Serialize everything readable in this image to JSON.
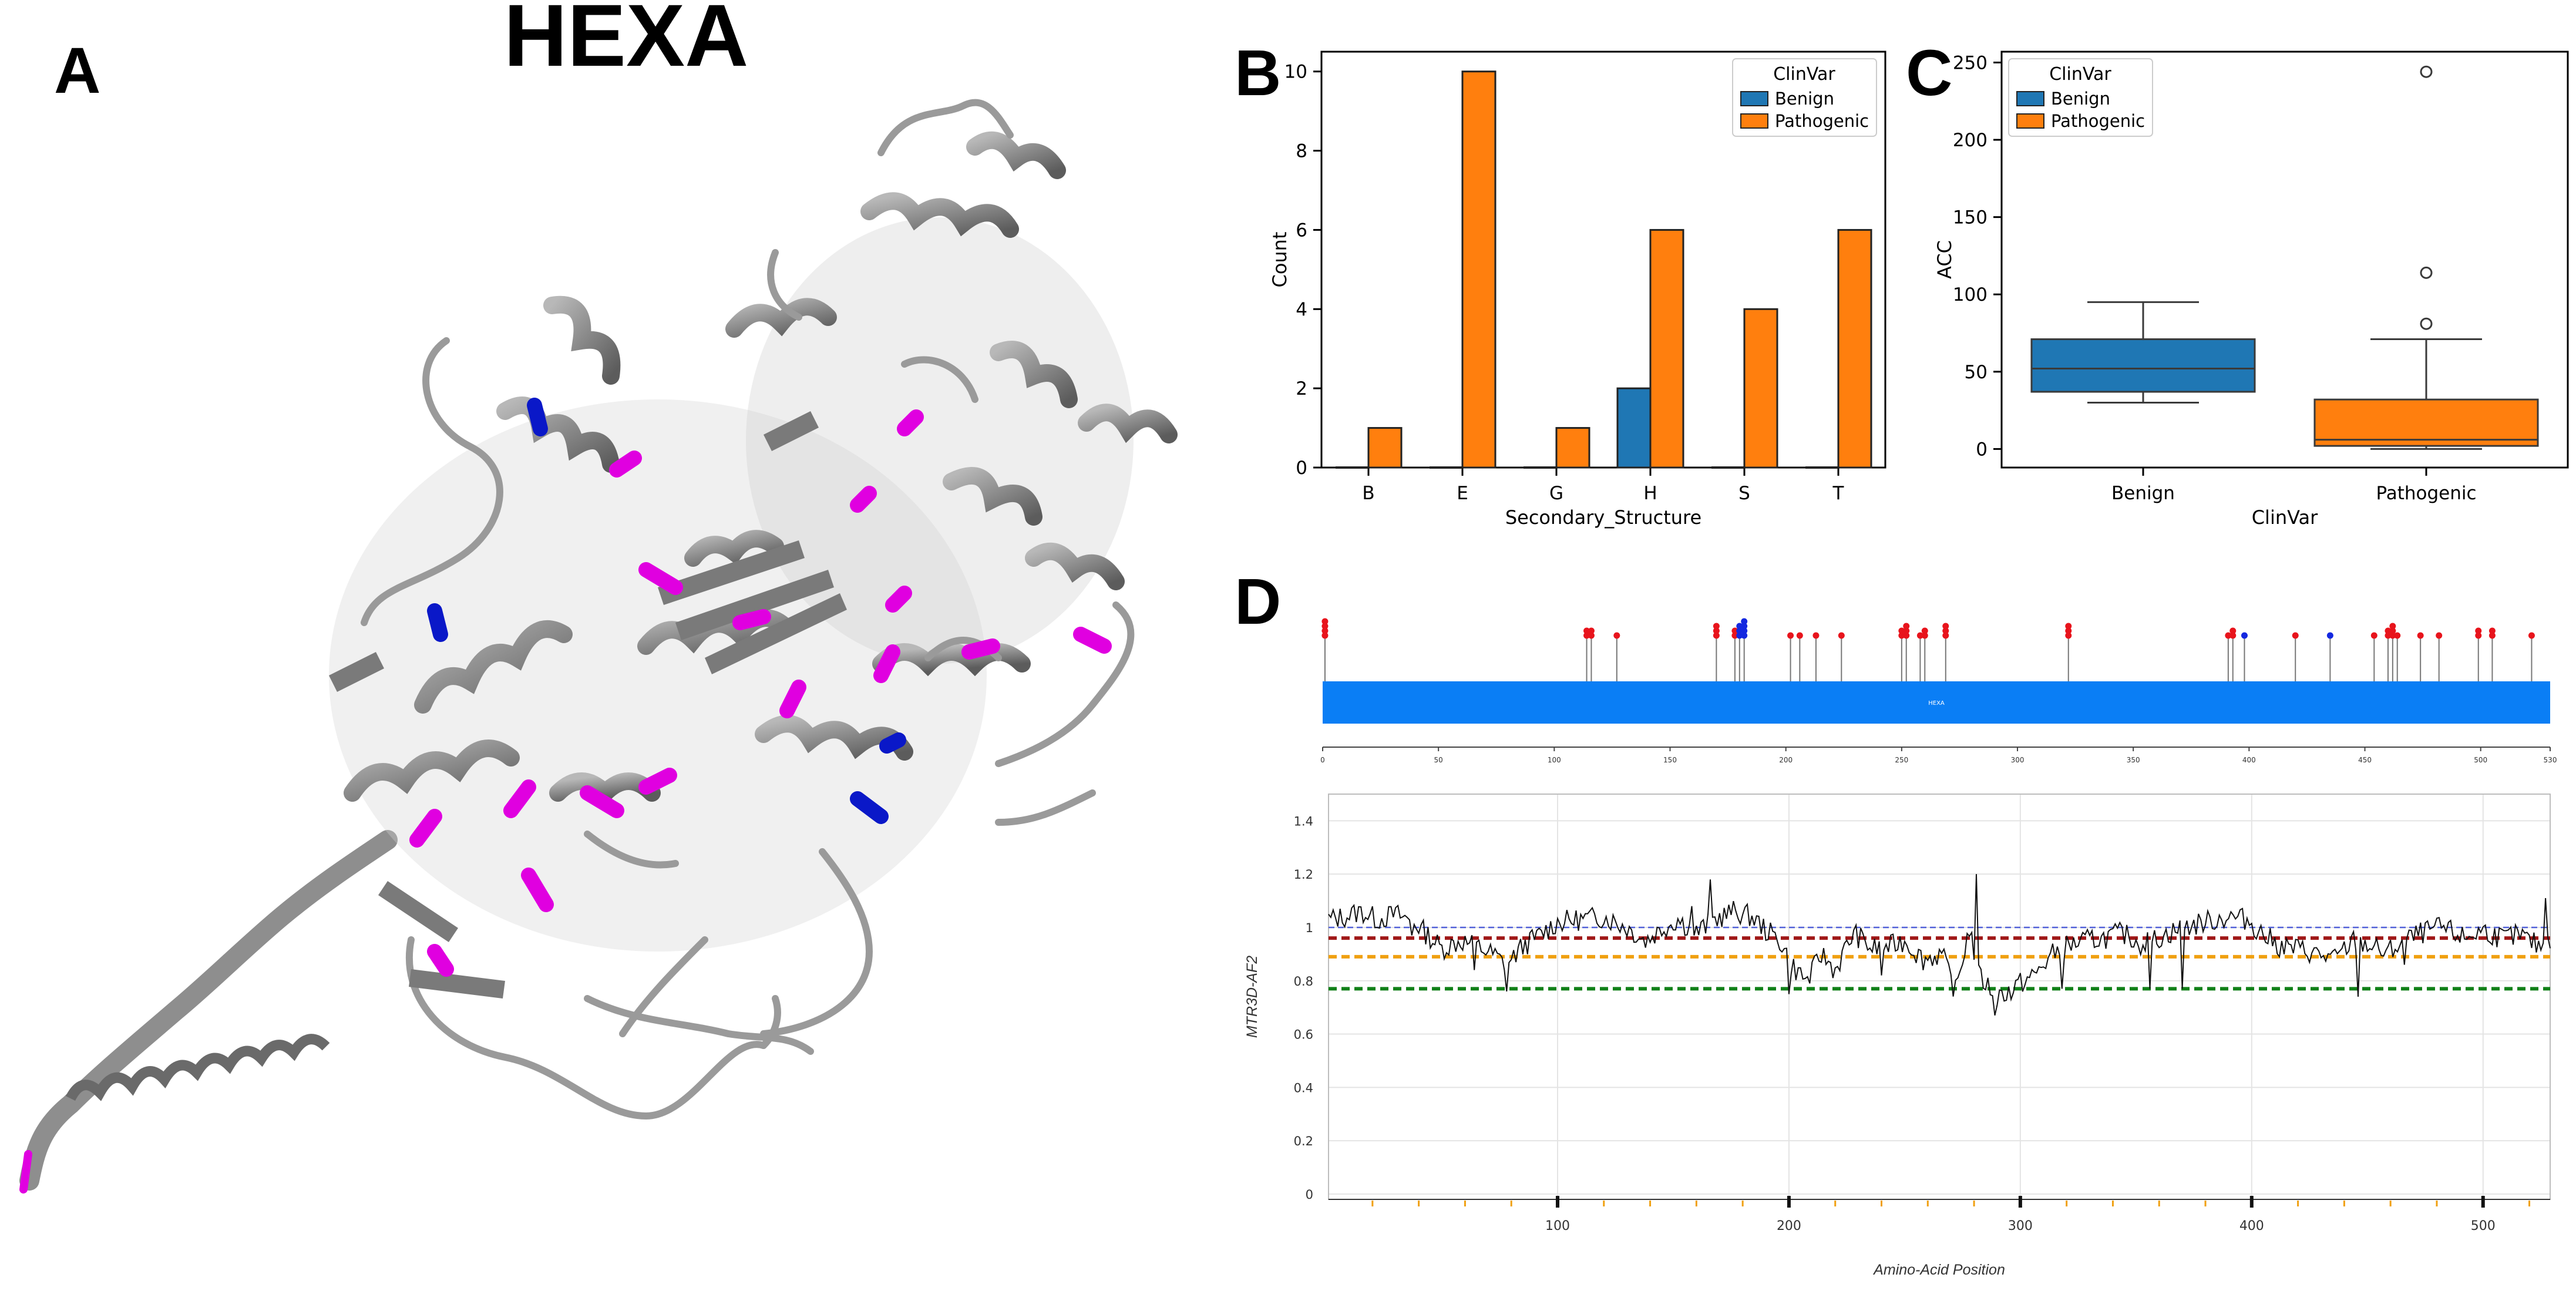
{
  "panels": {
    "a_label": "A",
    "a_title": "HEXA",
    "b_label": "B",
    "c_label": "C",
    "d_label": "D"
  },
  "colors": {
    "benign": "#1f77b4",
    "pathogenic": "#ff7f0e",
    "protein_gray": "#8a8a8a",
    "protein_magenta": "#e000e0",
    "protein_blue": "#0a18c8",
    "lollipop_red": "#e8141c",
    "lollipop_blue": "#1428e0",
    "domain_bar": "#0a7ef5",
    "ref_blue": "#5060d8",
    "ref_red": "#a01818",
    "ref_orange": "#f0a010",
    "ref_green": "#108018"
  },
  "chart_data": [
    {
      "id": "B",
      "type": "bar",
      "categories": [
        "B",
        "E",
        "G",
        "H",
        "S",
        "T"
      ],
      "series": [
        {
          "name": "Benign",
          "values": [
            0,
            0,
            0,
            2,
            0,
            0
          ]
        },
        {
          "name": "Pathogenic",
          "values": [
            1,
            10,
            1,
            6,
            4,
            6
          ]
        }
      ],
      "xlabel": "Secondary_Structure",
      "ylabel": "Count",
      "ylim": [
        0,
        10.5
      ],
      "yticks": [
        0,
        2,
        4,
        6,
        8,
        10
      ],
      "legend": {
        "title": "ClinVar",
        "entries": [
          "Benign",
          "Pathogenic"
        ],
        "placement": "top-right"
      }
    },
    {
      "id": "C",
      "type": "box",
      "categories": [
        "Benign",
        "Pathogenic"
      ],
      "boxes": [
        {
          "name": "Benign",
          "whisker_low": 30,
          "q1": 37,
          "median": 52,
          "q3": 71,
          "whisker_high": 95,
          "outliers": []
        },
        {
          "name": "Pathogenic",
          "whisker_low": 0,
          "q1": 2,
          "median": 6,
          "q3": 32,
          "whisker_high": 71,
          "outliers": [
            81,
            114,
            244
          ]
        }
      ],
      "xlabel": "ClinVar",
      "ylabel": "ACC",
      "ylim": [
        -12,
        257
      ],
      "yticks": [
        0,
        50,
        100,
        150,
        200,
        250
      ],
      "legend": {
        "title": "ClinVar",
        "entries": [
          "Benign",
          "Pathogenic"
        ],
        "placement": "top-left"
      }
    },
    {
      "id": "D-lollipop",
      "type": "lollipop",
      "domain_label": "HEXA",
      "xlim": [
        0,
        530
      ],
      "xticks": [
        0,
        50,
        100,
        150,
        200,
        250,
        300,
        350,
        400,
        450,
        500,
        530
      ],
      "variants": [
        {
          "pos": 1,
          "count": 4,
          "class": "pathogenic"
        },
        {
          "pos": 114,
          "count": 2,
          "class": "pathogenic"
        },
        {
          "pos": 116,
          "count": 2,
          "class": "pathogenic"
        },
        {
          "pos": 127,
          "count": 1,
          "class": "pathogenic"
        },
        {
          "pos": 170,
          "count": 3,
          "class": "pathogenic"
        },
        {
          "pos": 178,
          "count": 2,
          "class": "pathogenic"
        },
        {
          "pos": 180,
          "count": 3,
          "class": "blue"
        },
        {
          "pos": 182,
          "count": 4,
          "class": "blue"
        },
        {
          "pos": 202,
          "count": 1,
          "class": "pathogenic"
        },
        {
          "pos": 206,
          "count": 1,
          "class": "pathogenic"
        },
        {
          "pos": 213,
          "count": 1,
          "class": "pathogenic"
        },
        {
          "pos": 224,
          "count": 1,
          "class": "pathogenic"
        },
        {
          "pos": 250,
          "count": 2,
          "class": "pathogenic"
        },
        {
          "pos": 252,
          "count": 3,
          "class": "pathogenic"
        },
        {
          "pos": 258,
          "count": 1,
          "class": "pathogenic"
        },
        {
          "pos": 260,
          "count": 2,
          "class": "pathogenic"
        },
        {
          "pos": 269,
          "count": 3,
          "class": "pathogenic"
        },
        {
          "pos": 322,
          "count": 3,
          "class": "pathogenic"
        },
        {
          "pos": 391,
          "count": 1,
          "class": "pathogenic"
        },
        {
          "pos": 393,
          "count": 2,
          "class": "pathogenic"
        },
        {
          "pos": 398,
          "count": 1,
          "class": "blue"
        },
        {
          "pos": 420,
          "count": 1,
          "class": "pathogenic"
        },
        {
          "pos": 435,
          "count": 1,
          "class": "blue"
        },
        {
          "pos": 454,
          "count": 1,
          "class": "pathogenic"
        },
        {
          "pos": 460,
          "count": 2,
          "class": "pathogenic"
        },
        {
          "pos": 462,
          "count": 3,
          "class": "pathogenic"
        },
        {
          "pos": 464,
          "count": 1,
          "class": "pathogenic"
        },
        {
          "pos": 474,
          "count": 1,
          "class": "pathogenic"
        },
        {
          "pos": 482,
          "count": 1,
          "class": "pathogenic"
        },
        {
          "pos": 499,
          "count": 2,
          "class": "pathogenic"
        },
        {
          "pos": 505,
          "count": 2,
          "class": "pathogenic"
        },
        {
          "pos": 522,
          "count": 1,
          "class": "pathogenic"
        }
      ]
    },
    {
      "id": "D-line",
      "type": "line",
      "xlabel": "Amino-Acid Position",
      "ylabel": "MTR3D-AF2",
      "xlim": [
        1,
        529
      ],
      "xticks": [
        100,
        200,
        300,
        400,
        500
      ],
      "ylim": [
        -0.02,
        1.5
      ],
      "yticks": [
        0,
        0.2,
        0.4,
        0.6,
        0.8,
        1,
        1.2,
        1.4
      ],
      "reference_lines": [
        {
          "value": 1.0,
          "color": "#5060d8"
        },
        {
          "value": 0.96,
          "color": "#a01818"
        },
        {
          "value": 0.89,
          "color": "#f0a010"
        },
        {
          "value": 0.77,
          "color": "#108018"
        }
      ],
      "profile_keypoints": [
        [
          1,
          1.03
        ],
        [
          8,
          1.04
        ],
        [
          15,
          1.06
        ],
        [
          22,
          1.03
        ],
        [
          30,
          1.05
        ],
        [
          38,
          1.02
        ],
        [
          44,
          0.97
        ],
        [
          50,
          0.92
        ],
        [
          58,
          0.95
        ],
        [
          65,
          0.93
        ],
        [
          72,
          0.9
        ],
        [
          78,
          0.86
        ],
        [
          85,
          0.93
        ],
        [
          92,
          0.97
        ],
        [
          100,
          1.02
        ],
        [
          110,
          1.03
        ],
        [
          120,
          1.04
        ],
        [
          130,
          1.0
        ],
        [
          138,
          0.95
        ],
        [
          146,
          1.0
        ],
        [
          152,
          1.03
        ],
        [
          160,
          0.98
        ],
        [
          168,
          1.03
        ],
        [
          176,
          1.06
        ],
        [
          184,
          1.04
        ],
        [
          190,
          0.99
        ],
        [
          196,
          0.95
        ],
        [
          202,
          0.85
        ],
        [
          208,
          0.8
        ],
        [
          214,
          0.9
        ],
        [
          220,
          0.84
        ],
        [
          228,
          0.98
        ],
        [
          236,
          0.92
        ],
        [
          244,
          0.93
        ],
        [
          250,
          0.95
        ],
        [
          258,
          0.88
        ],
        [
          266,
          0.9
        ],
        [
          272,
          0.76
        ],
        [
          278,
          1.0
        ],
        [
          282,
          0.82
        ],
        [
          290,
          0.74
        ],
        [
          298,
          0.78
        ],
        [
          306,
          0.82
        ],
        [
          314,
          0.9
        ],
        [
          320,
          0.93
        ],
        [
          328,
          0.95
        ],
        [
          336,
          0.96
        ],
        [
          344,
          0.98
        ],
        [
          352,
          0.94
        ],
        [
          360,
          0.96
        ],
        [
          370,
          1.0
        ],
        [
          380,
          1.02
        ],
        [
          390,
          1.04
        ],
        [
          398,
          1.03
        ],
        [
          404,
          0.98
        ],
        [
          412,
          0.93
        ],
        [
          420,
          0.92
        ],
        [
          428,
          0.9
        ],
        [
          436,
          0.88
        ],
        [
          444,
          0.95
        ],
        [
          452,
          0.93
        ],
        [
          458,
          0.9
        ],
        [
          466,
          0.95
        ],
        [
          474,
          0.98
        ],
        [
          482,
          1.0
        ],
        [
          492,
          0.96
        ],
        [
          500,
          0.99
        ],
        [
          508,
          0.96
        ],
        [
          516,
          0.97
        ],
        [
          524,
          0.93
        ],
        [
          529,
          0.96
        ]
      ],
      "spikes": [
        [
          37,
          0.97
        ],
        [
          64,
          0.84
        ],
        [
          78,
          0.76
        ],
        [
          158,
          1.08
        ],
        [
          166,
          1.18
        ],
        [
          200,
          0.75
        ],
        [
          240,
          0.82
        ],
        [
          281,
          1.2
        ],
        [
          289,
          0.67
        ],
        [
          296,
          0.73
        ],
        [
          318,
          0.77
        ],
        [
          356,
          0.77
        ],
        [
          370,
          0.77
        ],
        [
          446,
          0.74
        ],
        [
          466,
          0.86
        ],
        [
          527,
          1.11
        ]
      ]
    }
  ]
}
